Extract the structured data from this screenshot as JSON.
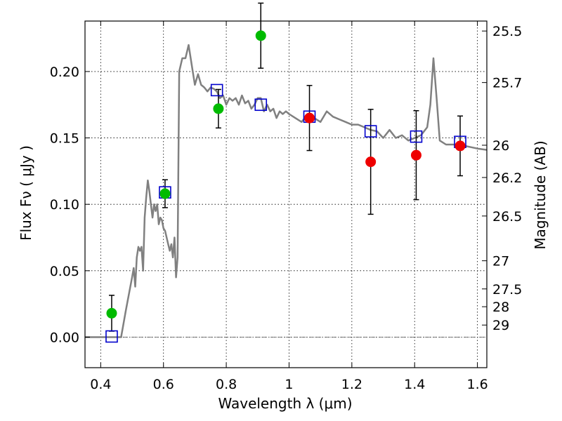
{
  "chart_data": {
    "type": "scatter",
    "xlabel": "Wavelength  λ (μm)",
    "ylabel": "Flux  Fν  ( μJy )",
    "y2label": "Magnitude (AB)",
    "xlim": [
      0.35,
      1.63
    ],
    "ylim": [
      -0.023,
      0.238
    ],
    "grid": true,
    "x_ticks": [
      0.4,
      0.6,
      0.8,
      1.0,
      1.2,
      1.4,
      1.6
    ],
    "x_tick_labels": [
      "0.4",
      "0.6",
      "0.8",
      "1",
      "1.2",
      "1.4",
      "1.6"
    ],
    "y_ticks": [
      0.0,
      0.05,
      0.1,
      0.15,
      0.2
    ],
    "y_tick_labels": [
      "0.00",
      "0.05",
      "0.10",
      "0.15",
      "0.20"
    ],
    "y2_ticks": [
      {
        "label": "25.5",
        "flux": 0.2305
      },
      {
        "label": "25.7",
        "flux": 0.1917
      },
      {
        "label": "26",
        "flux": 0.1445
      },
      {
        "label": "26.2",
        "flux": 0.1202
      },
      {
        "label": "26.5",
        "flux": 0.0912
      },
      {
        "label": "27",
        "flux": 0.0575
      },
      {
        "label": "27.5",
        "flux": 0.0363
      },
      {
        "label": "28",
        "flux": 0.0229
      },
      {
        "label": "29",
        "flux": 0.0091
      }
    ],
    "colors": {
      "model": "#808080",
      "model_photometry": "#0000cc",
      "optical_photometry": "#00bb00",
      "nir_photometry": "#ee0000",
      "errorbar": "#000000",
      "zero_line": "#555555"
    },
    "series": [
      {
        "type": "line",
        "x": [
          0.35,
          0.44,
          0.465,
          0.48,
          0.5,
          0.505,
          0.51,
          0.515,
          0.52,
          0.525,
          0.53,
          0.535,
          0.54,
          0.545,
          0.55,
          0.555,
          0.56,
          0.565,
          0.57,
          0.575,
          0.58,
          0.585,
          0.59,
          0.595,
          0.6,
          0.605,
          0.61,
          0.615,
          0.62,
          0.625,
          0.63,
          0.635,
          0.64,
          0.645,
          0.65,
          0.66,
          0.67,
          0.68,
          0.69,
          0.7,
          0.71,
          0.72,
          0.73,
          0.74,
          0.75,
          0.76,
          0.77,
          0.78,
          0.79,
          0.8,
          0.81,
          0.82,
          0.83,
          0.84,
          0.85,
          0.86,
          0.87,
          0.88,
          0.89,
          0.9,
          0.91,
          0.92,
          0.93,
          0.94,
          0.95,
          0.96,
          0.97,
          0.98,
          0.99,
          1.0,
          1.02,
          1.04,
          1.06,
          1.08,
          1.1,
          1.12,
          1.14,
          1.16,
          1.18,
          1.2,
          1.22,
          1.24,
          1.26,
          1.28,
          1.3,
          1.32,
          1.34,
          1.36,
          1.38,
          1.4,
          1.42,
          1.44,
          1.45,
          1.46,
          1.47,
          1.48,
          1.5,
          1.52,
          1.54,
          1.56,
          1.58,
          1.6,
          1.63
        ],
        "values": [
          0.0,
          0.0,
          0.0,
          0.02,
          0.045,
          0.052,
          0.038,
          0.06,
          0.068,
          0.065,
          0.068,
          0.05,
          0.09,
          0.105,
          0.118,
          0.11,
          0.1,
          0.09,
          0.1,
          0.095,
          0.1,
          0.085,
          0.09,
          0.088,
          0.082,
          0.08,
          0.075,
          0.07,
          0.065,
          0.07,
          0.06,
          0.075,
          0.045,
          0.06,
          0.2,
          0.21,
          0.21,
          0.22,
          0.205,
          0.19,
          0.198,
          0.19,
          0.188,
          0.185,
          0.188,
          0.187,
          0.185,
          0.18,
          0.182,
          0.175,
          0.18,
          0.178,
          0.18,
          0.175,
          0.182,
          0.176,
          0.178,
          0.172,
          0.175,
          0.18,
          0.18,
          0.17,
          0.175,
          0.17,
          0.172,
          0.165,
          0.17,
          0.168,
          0.17,
          0.168,
          0.165,
          0.162,
          0.168,
          0.165,
          0.162,
          0.17,
          0.166,
          0.164,
          0.162,
          0.16,
          0.16,
          0.158,
          0.156,
          0.155,
          0.15,
          0.156,
          0.15,
          0.152,
          0.148,
          0.15,
          0.152,
          0.158,
          0.175,
          0.21,
          0.18,
          0.148,
          0.145,
          0.145,
          0.145,
          0.144,
          0.143,
          0.142,
          0.141
        ]
      },
      {
        "type": "scatter",
        "marker": "square",
        "x": [
          0.435,
          0.605,
          0.77,
          0.91,
          1.065,
          1.26,
          1.405,
          1.545
        ],
        "values": [
          0.0005,
          0.109,
          0.186,
          0.175,
          0.166,
          0.155,
          0.151,
          0.147
        ]
      },
      {
        "type": "scatter",
        "marker": "circle",
        "x": [
          0.435,
          0.605,
          0.775,
          0.91
        ],
        "values": [
          0.018,
          0.108,
          0.172,
          0.227
        ],
        "err": [
          0.0135,
          0.0105,
          0.0145,
          0.0245
        ]
      },
      {
        "type": "scatter",
        "marker": "circle",
        "x": [
          1.065,
          1.26,
          1.405,
          1.545
        ],
        "values": [
          0.165,
          0.132,
          0.137,
          0.144
        ],
        "err": [
          0.0245,
          0.0395,
          0.0335,
          0.0225
        ]
      }
    ]
  }
}
